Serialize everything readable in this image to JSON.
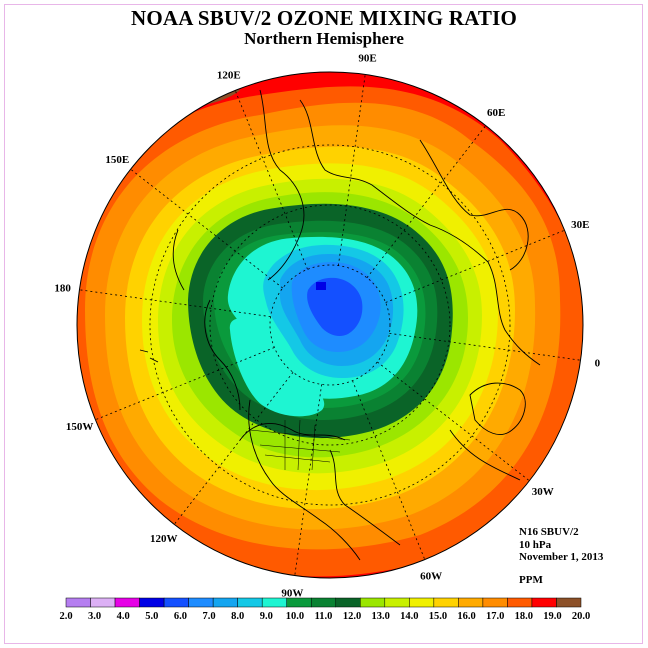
{
  "title": "NOAA SBUV/2 OZONE MIXING RATIO",
  "subtitle": "Northern Hemisphere",
  "longitude_labels": [
    {
      "label": "90E",
      "lon": 90
    },
    {
      "label": "60E",
      "lon": 60
    },
    {
      "label": "30E",
      "lon": 30
    },
    {
      "label": "0",
      "lon": 0
    },
    {
      "label": "30W",
      "lon": -30
    },
    {
      "label": "60W",
      "lon": -60
    },
    {
      "label": "90W",
      "lon": -90
    },
    {
      "label": "120W",
      "lon": -120
    },
    {
      "label": "150W",
      "lon": -150
    },
    {
      "label": "180",
      "lon": 180
    },
    {
      "label": "150E",
      "lon": 150
    },
    {
      "label": "120E",
      "lon": 120
    }
  ],
  "info": {
    "instrument": "N16 SBUV/2",
    "level": "10 hPa",
    "date": "November 1, 2013",
    "units": "PPM"
  },
  "colorbar": {
    "labels": [
      "2.0",
      "3.0",
      "4.0",
      "5.0",
      "6.0",
      "7.0",
      "8.0",
      "9.0",
      "10.0",
      "11.0",
      "12.0",
      "13.0",
      "14.0",
      "15.0",
      "16.0",
      "17.0",
      "18.0",
      "19.0",
      "20.0"
    ],
    "colors": [
      "#b57ef0",
      "#dcb0f5",
      "#e600e6",
      "#0000e6",
      "#1450ff",
      "#1e8cff",
      "#14a5f0",
      "#14c8e6",
      "#1ef5d2",
      "#0a9a3c",
      "#0a8232",
      "#0a6428",
      "#9be600",
      "#c8f000",
      "#f0f000",
      "#ffd200",
      "#ffaa00",
      "#ff8c00",
      "#ff5a00",
      "#ff0000",
      "#8c5028"
    ]
  },
  "map_fields": {
    "description_levels_ppm": [
      7,
      8,
      9,
      10,
      11,
      12,
      13,
      14,
      15,
      16,
      17,
      18,
      19
    ],
    "pole_minimum_ppm": 5.5,
    "outer_rim_ppm": 19.5
  }
}
